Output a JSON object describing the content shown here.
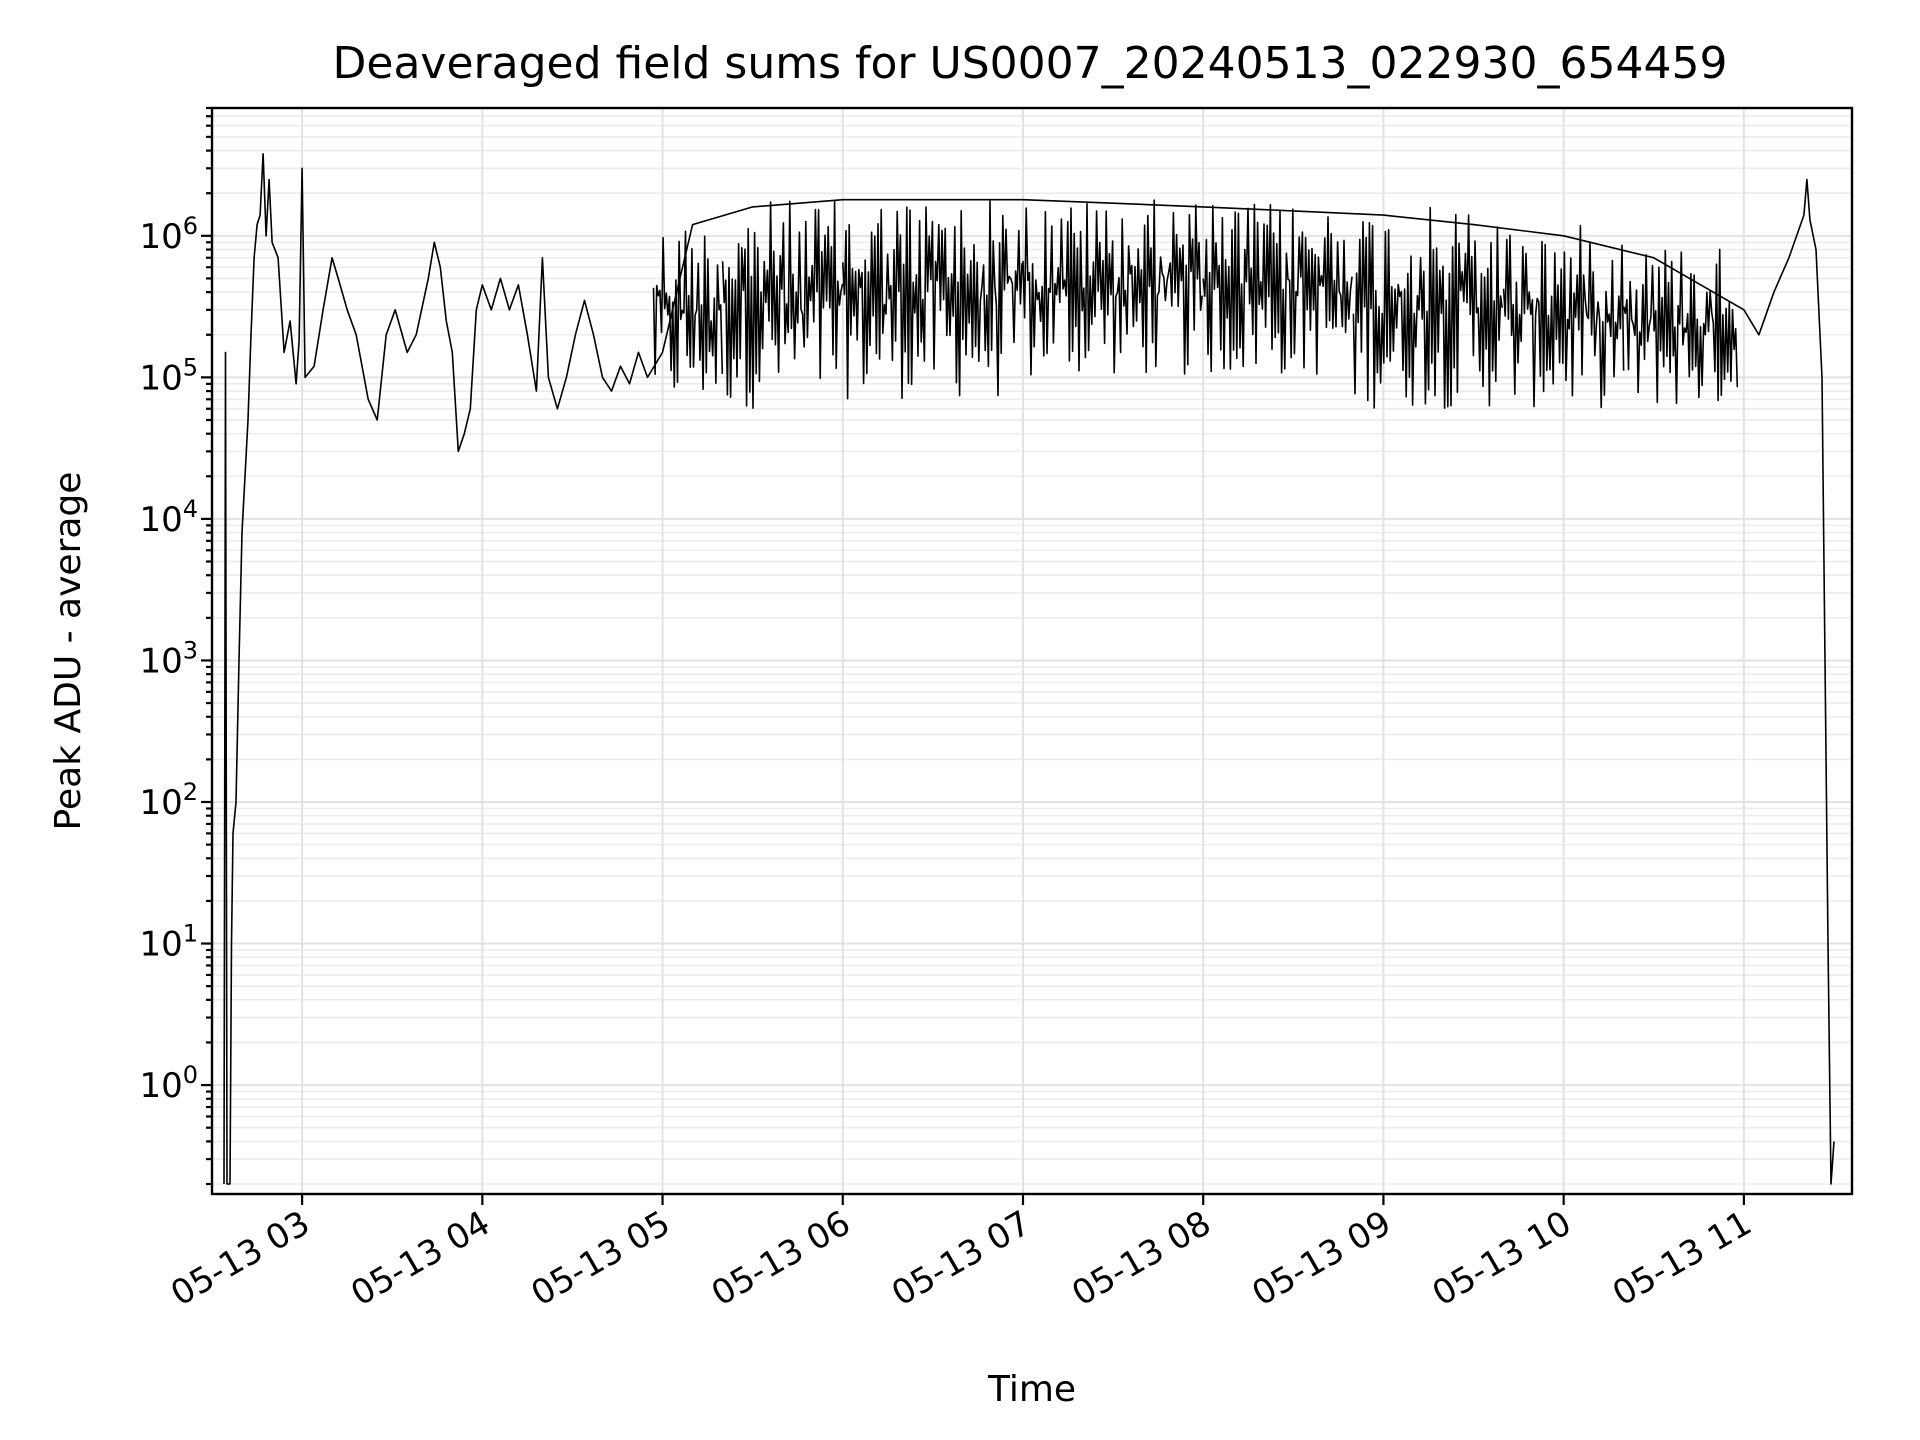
{
  "chart_data": {
    "type": "line",
    "title": "Deaveraged field sums for US0007_20240513_022930_654459",
    "xlabel": "Time",
    "ylabel": "Peak ADU - average",
    "yscale": "log",
    "xlim": [
      "2024-05-13T02:30:00",
      "2024-05-13T11:36:00"
    ],
    "ylim": [
      0.17,
      8000000
    ],
    "grid": true,
    "line_color": "#000000",
    "x_ticks": [
      {
        "label": "05-13 03",
        "value": "2024-05-13T03:00:00"
      },
      {
        "label": "05-13 04",
        "value": "2024-05-13T04:00:00"
      },
      {
        "label": "05-13 05",
        "value": "2024-05-13T05:00:00"
      },
      {
        "label": "05-13 06",
        "value": "2024-05-13T06:00:00"
      },
      {
        "label": "05-13 07",
        "value": "2024-05-13T07:00:00"
      },
      {
        "label": "05-13 08",
        "value": "2024-05-13T08:00:00"
      },
      {
        "label": "05-13 09",
        "value": "2024-05-13T09:00:00"
      },
      {
        "label": "05-13 10",
        "value": "2024-05-13T10:00:00"
      },
      {
        "label": "05-13 11",
        "value": "2024-05-13T11:00:00"
      }
    ],
    "y_ticks": [
      {
        "base": "10",
        "exp": "0",
        "value": 1
      },
      {
        "base": "10",
        "exp": "1",
        "value": 10
      },
      {
        "base": "10",
        "exp": "2",
        "value": 100
      },
      {
        "base": "10",
        "exp": "3",
        "value": 1000
      },
      {
        "base": "10",
        "exp": "4",
        "value": 10000
      },
      {
        "base": "10",
        "exp": "5",
        "value": 100000
      },
      {
        "base": "10",
        "exp": "6",
        "value": 1000000
      }
    ],
    "series": [
      {
        "points": [
          [
            "2024-05-13T02:34:00",
            0.2
          ],
          [
            "2024-05-13T02:34:30",
            150000
          ],
          [
            "2024-05-13T02:35:00",
            0.2
          ],
          [
            "2024-05-13T02:36:00",
            0.2
          ],
          [
            "2024-05-13T02:36:30",
            10
          ],
          [
            "2024-05-13T02:37:00",
            60
          ],
          [
            "2024-05-13T02:38:00",
            100
          ],
          [
            "2024-05-13T02:39:00",
            1000
          ],
          [
            "2024-05-13T02:40:00",
            8000
          ],
          [
            "2024-05-13T02:41:00",
            20000
          ],
          [
            "2024-05-13T02:42:00",
            50000
          ],
          [
            "2024-05-13T02:43:00",
            200000
          ],
          [
            "2024-05-13T02:44:00",
            700000
          ],
          [
            "2024-05-13T02:45:00",
            1200000
          ],
          [
            "2024-05-13T02:46:00",
            1400000
          ],
          [
            "2024-05-13T02:47:00",
            3800000
          ],
          [
            "2024-05-13T02:48:00",
            1000000
          ],
          [
            "2024-05-13T02:49:00",
            2500000
          ],
          [
            "2024-05-13T02:50:00",
            900000
          ],
          [
            "2024-05-13T02:52:00",
            700000
          ],
          [
            "2024-05-13T02:54:00",
            150000
          ],
          [
            "2024-05-13T02:56:00",
            250000
          ],
          [
            "2024-05-13T02:58:00",
            90000
          ],
          [
            "2024-05-13T02:59:00",
            180000
          ],
          [
            "2024-05-13T03:00:00",
            3000000
          ],
          [
            "2024-05-13T03:01:00",
            100000
          ],
          [
            "2024-05-13T03:04:00",
            120000
          ],
          [
            "2024-05-13T03:07:00",
            300000
          ],
          [
            "2024-05-13T03:10:00",
            700000
          ],
          [
            "2024-05-13T03:12:00",
            500000
          ],
          [
            "2024-05-13T03:15:00",
            300000
          ],
          [
            "2024-05-13T03:18:00",
            200000
          ],
          [
            "2024-05-13T03:22:00",
            70000
          ],
          [
            "2024-05-13T03:25:00",
            50000
          ],
          [
            "2024-05-13T03:28:00",
            200000
          ],
          [
            "2024-05-13T03:31:00",
            300000
          ],
          [
            "2024-05-13T03:35:00",
            150000
          ],
          [
            "2024-05-13T03:38:00",
            200000
          ],
          [
            "2024-05-13T03:42:00",
            500000
          ],
          [
            "2024-05-13T03:44:00",
            900000
          ],
          [
            "2024-05-13T03:46:00",
            600000
          ],
          [
            "2024-05-13T03:48:00",
            250000
          ],
          [
            "2024-05-13T03:50:00",
            150000
          ],
          [
            "2024-05-13T03:52:00",
            30000
          ],
          [
            "2024-05-13T03:54:00",
            40000
          ],
          [
            "2024-05-13T03:56:00",
            60000
          ],
          [
            "2024-05-13T03:58:00",
            300000
          ],
          [
            "2024-05-13T04:00:00",
            450000
          ],
          [
            "2024-05-13T04:03:00",
            300000
          ],
          [
            "2024-05-13T04:06:00",
            500000
          ],
          [
            "2024-05-13T04:09:00",
            300000
          ],
          [
            "2024-05-13T04:12:00",
            450000
          ],
          [
            "2024-05-13T04:15:00",
            200000
          ],
          [
            "2024-05-13T04:18:00",
            80000
          ],
          [
            "2024-05-13T04:20:00",
            700000
          ],
          [
            "2024-05-13T04:22:00",
            100000
          ],
          [
            "2024-05-13T04:25:00",
            60000
          ],
          [
            "2024-05-13T04:28:00",
            100000
          ],
          [
            "2024-05-13T04:31:00",
            200000
          ],
          [
            "2024-05-13T04:34:00",
            350000
          ],
          [
            "2024-05-13T04:37:00",
            200000
          ],
          [
            "2024-05-13T04:40:00",
            100000
          ],
          [
            "2024-05-13T04:43:00",
            80000
          ],
          [
            "2024-05-13T04:46:00",
            120000
          ],
          [
            "2024-05-13T04:49:00",
            90000
          ],
          [
            "2024-05-13T04:52:00",
            150000
          ],
          [
            "2024-05-13T04:55:00",
            100000
          ],
          [
            "2024-05-13T05:00:00",
            150000
          ],
          [
            "2024-05-13T05:10:00",
            1200000
          ],
          [
            "2024-05-13T05:30:00",
            1600000
          ],
          [
            "2024-05-13T06:00:00",
            1800000
          ],
          [
            "2024-05-13T06:30:00",
            1800000
          ],
          [
            "2024-05-13T07:00:00",
            1800000
          ],
          [
            "2024-05-13T07:30:00",
            1700000
          ],
          [
            "2024-05-13T08:00:00",
            1600000
          ],
          [
            "2024-05-13T08:30:00",
            1500000
          ],
          [
            "2024-05-13T09:00:00",
            1400000
          ],
          [
            "2024-05-13T09:30:00",
            1200000
          ],
          [
            "2024-05-13T10:00:00",
            1000000
          ],
          [
            "2024-05-13T10:30:00",
            700000
          ],
          [
            "2024-05-13T11:00:00",
            300000
          ],
          [
            "2024-05-13T11:05:00",
            200000
          ],
          [
            "2024-05-13T11:10:00",
            400000
          ],
          [
            "2024-05-13T11:15:00",
            700000
          ],
          [
            "2024-05-13T11:20:00",
            1400000
          ],
          [
            "2024-05-13T11:21:00",
            2500000
          ],
          [
            "2024-05-13T11:22:00",
            1300000
          ],
          [
            "2024-05-13T11:24:00",
            800000
          ],
          [
            "2024-05-13T11:26:00",
            100000
          ],
          [
            "2024-05-13T11:27:00",
            1000
          ],
          [
            "2024-05-13T11:28:00",
            10
          ],
          [
            "2024-05-13T11:29:00",
            0.2
          ],
          [
            "2024-05-13T11:30:00",
            0.4
          ]
        ],
        "bands": [
          {
            "start": "2024-05-13T04:57:00",
            "end": "2024-05-13T05:20:00",
            "low": 60000,
            "high": 1300000
          },
          {
            "start": "2024-05-13T05:20:00",
            "end": "2024-05-13T06:00:00",
            "low": 60000,
            "high": 1800000
          },
          {
            "start": "2024-05-13T06:00:00",
            "end": "2024-05-13T07:00:00",
            "low": 70000,
            "high": 1900000
          },
          {
            "start": "2024-05-13T07:00:00",
            "end": "2024-05-13T08:00:00",
            "low": 100000,
            "high": 1800000
          },
          {
            "start": "2024-05-13T08:00:00",
            "end": "2024-05-13T08:50:00",
            "low": 100000,
            "high": 1700000
          },
          {
            "start": "2024-05-13T08:50:00",
            "end": "2024-05-13T09:40:00",
            "low": 60000,
            "high": 1600000
          },
          {
            "start": "2024-05-13T09:40:00",
            "end": "2024-05-13T10:20:00",
            "low": 60000,
            "high": 1200000
          },
          {
            "start": "2024-05-13T10:20:00",
            "end": "2024-05-13T10:58:00",
            "low": 60000,
            "high": 900000
          }
        ]
      }
    ]
  }
}
